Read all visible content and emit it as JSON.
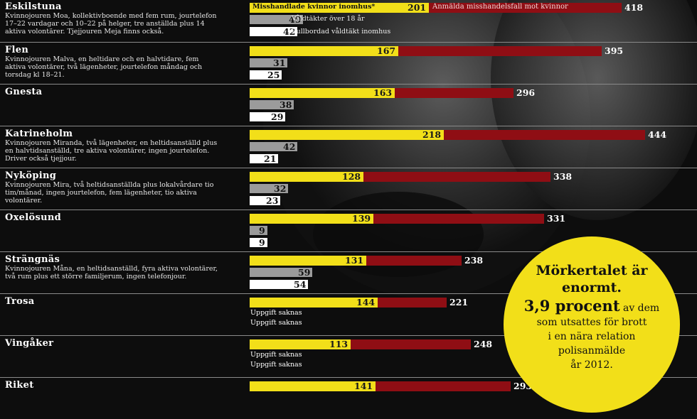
{
  "legend": {
    "yellow": "Misshandlade kvinnor inomhus*",
    "red": "Anmälda misshandelsfall mot kvinnor",
    "gray": "Våldtäkter över 18 år",
    "white": "Fullbordad våldtäkt inomhus"
  },
  "callout": {
    "line1": "Mörkertalet är",
    "line2": "enormt.",
    "highlight": "3,9 procent",
    "rest1": "av dem",
    "rest2": "som utsattes för brott",
    "rest3": "i en nära relation",
    "rest4": "polisanmälde",
    "rest5": "år 2012."
  },
  "colors": {
    "yellow": "#f2df19",
    "red": "#8f0e14",
    "gray": "#9b9b9b",
    "white": "#ffffff",
    "background": "#0d0d0d"
  },
  "chart_data": {
    "type": "bar",
    "orientation": "horizontal",
    "xlim": [
      0,
      444
    ],
    "series": [
      {
        "name": "Misshandlade kvinnor inomhus*",
        "color": "#f2df19",
        "values": [
          201,
          167,
          163,
          218,
          128,
          139,
          131,
          144,
          113,
          141
        ]
      },
      {
        "name": "Anmälda misshandelsfall mot kvinnor",
        "color": "#8f0e14",
        "values": [
          418,
          395,
          296,
          444,
          338,
          331,
          238,
          221,
          248,
          293
        ]
      },
      {
        "name": "Våldtäkter över 18 år",
        "color": "#9b9b9b",
        "values": [
          49,
          31,
          38,
          42,
          32,
          9,
          59,
          null,
          null,
          null
        ]
      },
      {
        "name": "Fullbordad våldtäkt inomhus",
        "color": "#ffffff",
        "values": [
          42,
          25,
          29,
          21,
          23,
          9,
          54,
          null,
          null,
          null
        ]
      }
    ],
    "categories": [
      "Eskilstuna",
      "Flen",
      "Gnesta",
      "Katrineholm",
      "Nyköping",
      "Oxelösund",
      "Strängnäs",
      "Trosa",
      "Vingåker",
      "Riket"
    ],
    "municipalities": [
      {
        "name": "Eskilstuna",
        "desc": "Kvinnojouren Moa, kollektivboende med fem rum, jourtelefon 17–22 vardagar och 10–22 på helger, tre anställda plus 14 aktiva volontärer. Tjejjouren Meja finns också.",
        "yellow": 201,
        "red": 418,
        "gray": 49,
        "white": 42,
        "gray_label": "",
        "white_label": ""
      },
      {
        "name": "Flen",
        "desc": "Kvinnojouren Malva, en heltidare och en halvtidare, fem aktiva volontärer, två lägenheter, jourtelefon måndag och torsdag kl 18–21.",
        "yellow": 167,
        "red": 395,
        "gray": 31,
        "white": 25,
        "gray_label": "",
        "white_label": ""
      },
      {
        "name": "Gnesta",
        "desc": "",
        "yellow": 163,
        "red": 296,
        "gray": 38,
        "white": 29,
        "gray_label": "",
        "white_label": ""
      },
      {
        "name": "Katrineholm",
        "desc": "Kvinnojouren Miranda, två lägenheter, en heltidsanställd plus en halvtidsanställd, tre aktiva volontärer, ingen jourtelefon. Driver också tjejjour.",
        "yellow": 218,
        "red": 444,
        "gray": 42,
        "white": 21,
        "gray_label": "",
        "white_label": ""
      },
      {
        "name": "Nyköping",
        "desc": "Kvinnojouren Mira, två heltidsanställda plus lokalvårdare tio tim/månad, ingen jourtelefon, fem lägenheter, tio aktiva volontärer.",
        "yellow": 128,
        "red": 338,
        "gray": 32,
        "white": 23,
        "gray_label": "",
        "white_label": ""
      },
      {
        "name": "Oxelösund",
        "desc": "",
        "yellow": 139,
        "red": 331,
        "gray": 9,
        "white": 9,
        "gray_label": "",
        "white_label": ""
      },
      {
        "name": "Strängnäs",
        "desc": "Kvinnojouren Måna, en heltidsanställd, fyra aktiva volontärer, två rum plus ett större familjerum, ingen telefonjour.",
        "yellow": 131,
        "red": 238,
        "gray": 59,
        "white": 54,
        "gray_label": "",
        "white_label": ""
      },
      {
        "name": "Trosa",
        "desc": "",
        "yellow": 144,
        "red": 221,
        "gray": null,
        "white": null,
        "gray_label": "Uppgift saknas",
        "white_label": "Uppgift saknas"
      },
      {
        "name": "Vingåker",
        "desc": "",
        "yellow": 113,
        "red": 248,
        "gray": null,
        "white": null,
        "gray_label": "Uppgift saknas",
        "white_label": "Uppgift saknas"
      },
      {
        "name": "Riket",
        "desc": "",
        "yellow": 141,
        "red": 293,
        "gray": null,
        "white": null,
        "gray_label": "",
        "white_label": ""
      }
    ]
  }
}
